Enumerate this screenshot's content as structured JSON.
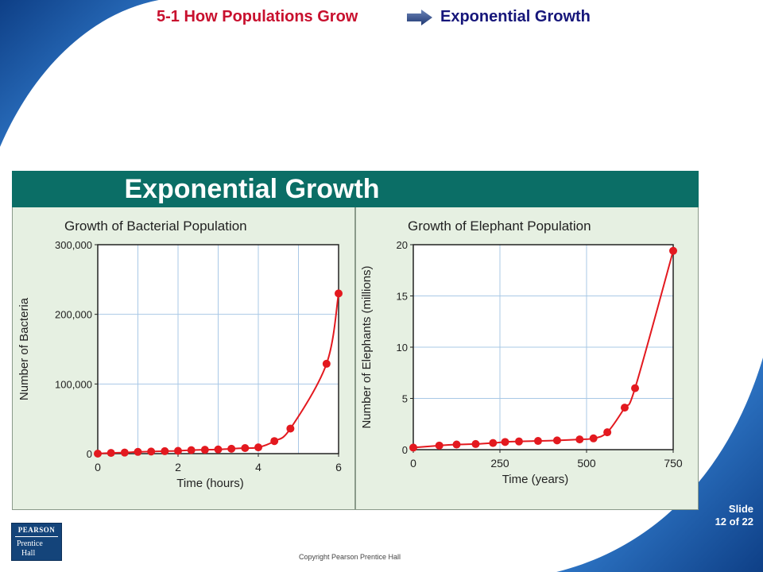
{
  "header": {
    "section": "5-1 How Populations Grow",
    "topic": "Exponential Growth"
  },
  "banner": {
    "title": "Exponential Growth"
  },
  "footer": {
    "slide_label": "Slide",
    "slide_count": "12 of 22",
    "copyright": "Copyright Pearson Prentice Hall",
    "logo_top": "PEARSON",
    "logo_line1": "Prentice",
    "logo_line2": "Hall"
  },
  "colors": {
    "header_red": "#c8102e",
    "header_blue": "#16167a",
    "banner_teal": "#0b6e66",
    "panel_bg": "#e6f0e2",
    "series_red": "#e3191f",
    "grid_blue": "#a9c8e6",
    "swoosh_blue": "#1f5fae"
  },
  "chart_data": [
    {
      "type": "scatter",
      "title": "Growth of Bacterial Population",
      "xlabel": "Time (hours)",
      "ylabel": "Number of Bacteria",
      "xlim": [
        0,
        6
      ],
      "ylim": [
        0,
        300000
      ],
      "x_ticks": [
        0,
        2,
        4,
        6
      ],
      "y_ticks": [
        0,
        100000,
        200000,
        300000
      ],
      "y_tick_labels": [
        "0",
        "100,000",
        "200,000",
        "300,000"
      ],
      "grid": true,
      "series": [
        {
          "x": [
            0,
            0.33,
            0.67,
            1,
            1.33,
            1.67,
            2,
            2.33,
            2.67,
            3,
            3.33,
            3.67,
            4,
            4.4,
            4.8,
            5.7,
            6
          ],
          "y": [
            0,
            1000,
            1500,
            2500,
            3000,
            3500,
            4000,
            5000,
            5500,
            6000,
            7000,
            8000,
            9000,
            18000,
            36000,
            129000,
            230000
          ]
        }
      ]
    },
    {
      "type": "scatter",
      "title": "Growth of Elephant Population",
      "xlabel": "Time (years)",
      "ylabel": "Number of Elephants (millions)",
      "xlim": [
        0,
        750
      ],
      "ylim": [
        0,
        20
      ],
      "x_ticks": [
        0,
        250,
        500,
        750
      ],
      "y_ticks": [
        0,
        5,
        10,
        15,
        20
      ],
      "y_tick_labels": [
        "0",
        "5",
        "10",
        "15",
        "20"
      ],
      "grid": true,
      "series": [
        {
          "x": [
            0,
            75,
            125,
            180,
            230,
            265,
            305,
            360,
            415,
            480,
            520,
            560,
            610,
            640,
            750
          ],
          "y": [
            0.2,
            0.4,
            0.5,
            0.55,
            0.65,
            0.75,
            0.8,
            0.85,
            0.9,
            1.0,
            1.1,
            1.7,
            4.1,
            6.0,
            19.4
          ]
        }
      ]
    }
  ]
}
